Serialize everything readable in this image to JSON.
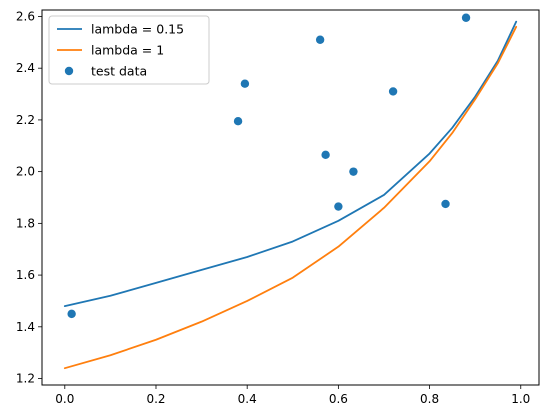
{
  "chart_data": {
    "type": "line",
    "xlim": [
      -0.05,
      1.04
    ],
    "ylim": [
      1.175,
      2.625
    ],
    "x_ticks": [
      0.0,
      0.2,
      0.4,
      0.6,
      0.8,
      1.0
    ],
    "x_tick_labels": [
      "0.0",
      "0.2",
      "0.4",
      "0.6",
      "0.8",
      "1.0"
    ],
    "y_ticks": [
      1.2,
      1.4,
      1.6,
      1.8,
      2.0,
      2.2,
      2.4,
      2.6
    ],
    "y_tick_labels": [
      "1.2",
      "1.4",
      "1.6",
      "1.8",
      "2.0",
      "2.2",
      "2.4",
      "2.6"
    ],
    "grid": false,
    "legend_position": "top-left",
    "series": [
      {
        "name": "lambda = 0.15",
        "kind": "line",
        "color": "#1f77b4",
        "x": [
          0.0,
          0.1,
          0.2,
          0.3,
          0.4,
          0.5,
          0.6,
          0.7,
          0.8,
          0.85,
          0.9,
          0.95,
          0.99
        ],
        "y": [
          1.48,
          1.52,
          1.57,
          1.62,
          1.67,
          1.73,
          1.81,
          1.91,
          2.07,
          2.17,
          2.29,
          2.43,
          2.58
        ]
      },
      {
        "name": "lambda = 1",
        "kind": "line",
        "color": "#ff7f0e",
        "x": [
          0.0,
          0.1,
          0.2,
          0.3,
          0.4,
          0.5,
          0.6,
          0.7,
          0.8,
          0.85,
          0.9,
          0.95,
          0.99
        ],
        "y": [
          1.24,
          1.29,
          1.35,
          1.42,
          1.5,
          1.59,
          1.71,
          1.86,
          2.04,
          2.15,
          2.28,
          2.42,
          2.56
        ]
      },
      {
        "name": "test data",
        "kind": "scatter",
        "color": "#1f77b4",
        "x": [
          0.015,
          0.38,
          0.395,
          0.56,
          0.572,
          0.6,
          0.633,
          0.72,
          0.835,
          0.88
        ],
        "y": [
          1.45,
          2.195,
          2.34,
          2.51,
          2.065,
          1.865,
          2.0,
          2.31,
          1.875,
          2.595
        ]
      }
    ]
  }
}
